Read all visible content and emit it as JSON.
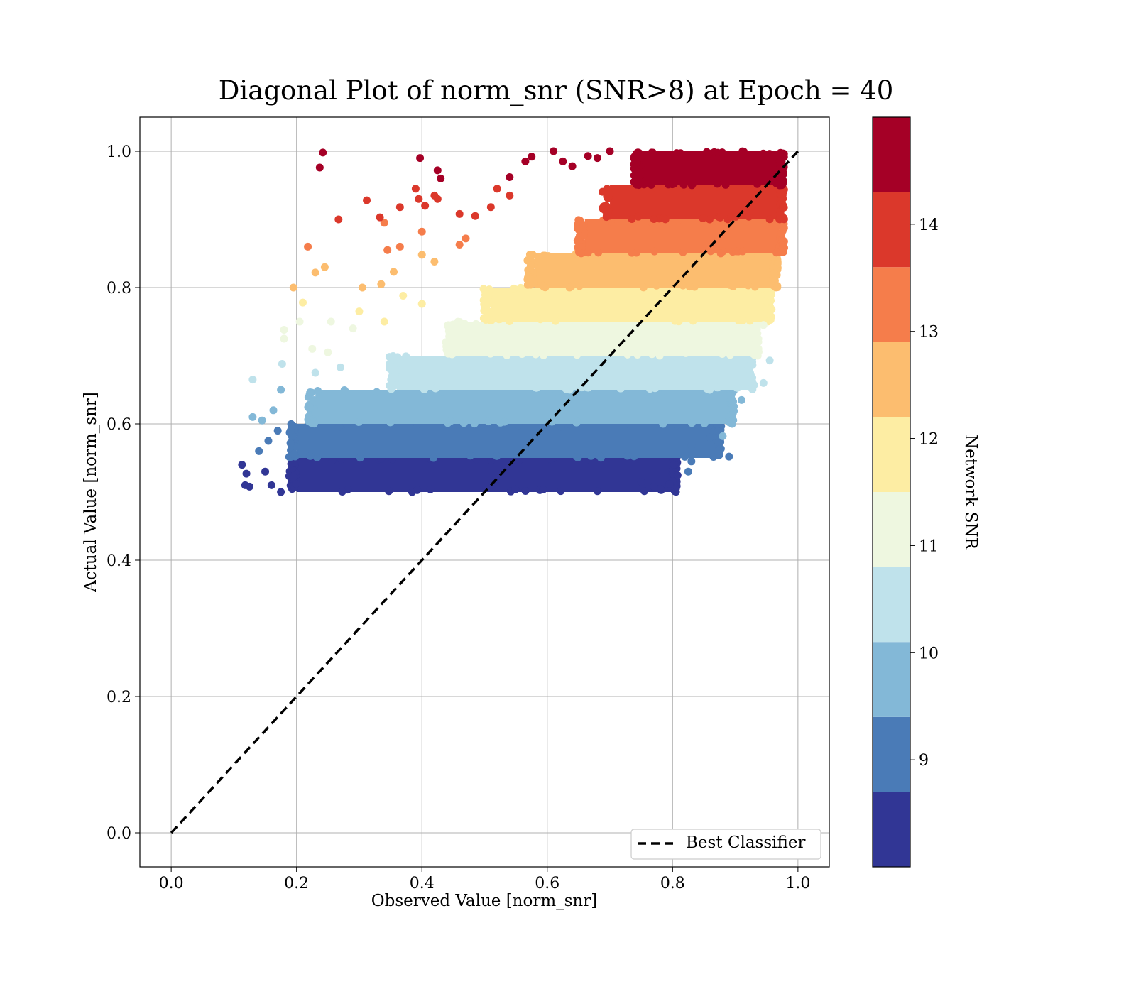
{
  "chart_data": {
    "type": "scatter",
    "title": "Diagonal Plot of norm_snr (SNR>8) at Epoch = 40",
    "xlabel": "Observed Value [norm_snr]",
    "ylabel": "Actual Value [norm_snr]",
    "xlim": [
      -0.05,
      1.05
    ],
    "ylim": [
      -0.05,
      1.05
    ],
    "xticks": [
      "0.0",
      "0.2",
      "0.4",
      "0.6",
      "0.8",
      "1.0"
    ],
    "yticks": [
      "0.0",
      "0.2",
      "0.4",
      "0.6",
      "0.8",
      "1.0"
    ],
    "grid": true,
    "legend": {
      "placement": "lower-right",
      "entries": [
        "Best Classifier"
      ]
    },
    "reference_line": {
      "name": "Best Classifier",
      "style": "dashed",
      "color": "#000000",
      "points": [
        [
          0,
          0
        ],
        [
          1,
          1
        ]
      ]
    },
    "colorbar": {
      "label": "Network SNR",
      "range": [
        8,
        15
      ],
      "tick_values": [
        9,
        10,
        11,
        12,
        13,
        14
      ],
      "tick_labels": [
        "9",
        "10",
        "11",
        "12",
        "13",
        "14"
      ],
      "bands": [
        {
          "min": 8.0,
          "max": 8.7,
          "color": "#313695"
        },
        {
          "min": 8.7,
          "max": 9.4,
          "color": "#4a7bb7"
        },
        {
          "min": 9.4,
          "max": 10.1,
          "color": "#83b8d7"
        },
        {
          "min": 10.1,
          "max": 10.8,
          "color": "#bfe2eb"
        },
        {
          "min": 10.8,
          "max": 11.5,
          "color": "#eef7e0"
        },
        {
          "min": 11.5,
          "max": 12.2,
          "color": "#fdeda3"
        },
        {
          "min": 12.2,
          "max": 12.9,
          "color": "#fcbd6f"
        },
        {
          "min": 12.9,
          "max": 13.6,
          "color": "#f57d4b"
        },
        {
          "min": 13.6,
          "max": 14.3,
          "color": "#db382b"
        },
        {
          "min": 14.3,
          "max": 15.0,
          "color": "#a50026"
        }
      ]
    },
    "series_bands": [
      {
        "y_range": [
          0.5,
          0.55
        ],
        "x_range": [
          0.2,
          0.8
        ],
        "color": "#313695"
      },
      {
        "y_range": [
          0.55,
          0.6
        ],
        "x_range": [
          0.2,
          0.87
        ],
        "color": "#4a7bb7"
      },
      {
        "y_range": [
          0.6,
          0.65
        ],
        "x_range": [
          0.23,
          0.89
        ],
        "color": "#83b8d7"
      },
      {
        "y_range": [
          0.65,
          0.7
        ],
        "x_range": [
          0.36,
          0.92
        ],
        "color": "#bfe2eb"
      },
      {
        "y_range": [
          0.7,
          0.75
        ],
        "x_range": [
          0.45,
          0.93
        ],
        "color": "#eef7e0"
      },
      {
        "y_range": [
          0.75,
          0.8
        ],
        "x_range": [
          0.51,
          0.95
        ],
        "color": "#fdeda3"
      },
      {
        "y_range": [
          0.8,
          0.85
        ],
        "x_range": [
          0.58,
          0.96
        ],
        "color": "#fcbd6f"
      },
      {
        "y_range": [
          0.85,
          0.9
        ],
        "x_range": [
          0.66,
          0.97
        ],
        "color": "#f57d4b"
      },
      {
        "y_range": [
          0.9,
          0.95
        ],
        "x_range": [
          0.7,
          0.97
        ],
        "color": "#db382b"
      },
      {
        "y_range": [
          0.95,
          1.0
        ],
        "x_range": [
          0.75,
          0.97
        ],
        "color": "#a50026"
      }
    ],
    "scatter_points": [
      [
        0.113,
        0.54,
        "#313695"
      ],
      [
        0.118,
        0.51,
        "#313695"
      ],
      [
        0.12,
        0.527,
        "#313695"
      ],
      [
        0.125,
        0.508,
        "#313695"
      ],
      [
        0.15,
        0.53,
        "#313695"
      ],
      [
        0.16,
        0.51,
        "#313695"
      ],
      [
        0.175,
        0.5,
        "#313695"
      ],
      [
        0.78,
        0.505,
        "#313695"
      ],
      [
        0.77,
        0.508,
        "#313695"
      ],
      [
        0.75,
        0.515,
        "#313695"
      ],
      [
        0.795,
        0.512,
        "#313695"
      ],
      [
        0.14,
        0.56,
        "#4a7bb7"
      ],
      [
        0.155,
        0.575,
        "#4a7bb7"
      ],
      [
        0.17,
        0.59,
        "#4a7bb7"
      ],
      [
        0.83,
        0.545,
        "#4a7bb7"
      ],
      [
        0.83,
        0.568,
        "#4a7bb7"
      ],
      [
        0.89,
        0.552,
        "#4a7bb7"
      ],
      [
        0.86,
        0.58,
        "#4a7bb7"
      ],
      [
        0.825,
        0.53,
        "#4a7bb7"
      ],
      [
        0.13,
        0.61,
        "#83b8d7"
      ],
      [
        0.145,
        0.605,
        "#83b8d7"
      ],
      [
        0.175,
        0.65,
        "#83b8d7"
      ],
      [
        0.163,
        0.62,
        "#83b8d7"
      ],
      [
        0.88,
        0.582,
        "#83b8d7"
      ],
      [
        0.895,
        0.6,
        "#83b8d7"
      ],
      [
        0.91,
        0.635,
        "#83b8d7"
      ],
      [
        0.13,
        0.665,
        "#bfe2eb"
      ],
      [
        0.177,
        0.688,
        "#bfe2eb"
      ],
      [
        0.23,
        0.675,
        "#bfe2eb"
      ],
      [
        0.27,
        0.683,
        "#bfe2eb"
      ],
      [
        0.93,
        0.657,
        "#bfe2eb"
      ],
      [
        0.945,
        0.66,
        "#bfe2eb"
      ],
      [
        0.955,
        0.693,
        "#bfe2eb"
      ],
      [
        0.18,
        0.738,
        "#eef7e0"
      ],
      [
        0.18,
        0.725,
        "#eef7e0"
      ],
      [
        0.205,
        0.75,
        "#eef7e0"
      ],
      [
        0.225,
        0.71,
        "#eef7e0"
      ],
      [
        0.25,
        0.705,
        "#eef7e0"
      ],
      [
        0.255,
        0.75,
        "#eef7e0"
      ],
      [
        0.29,
        0.74,
        "#eef7e0"
      ],
      [
        0.945,
        0.745,
        "#eef7e0"
      ],
      [
        0.935,
        0.72,
        "#eef7e0"
      ],
      [
        0.21,
        0.778,
        "#fdeda3"
      ],
      [
        0.3,
        0.765,
        "#fdeda3"
      ],
      [
        0.34,
        0.75,
        "#fdeda3"
      ],
      [
        0.37,
        0.788,
        "#fdeda3"
      ],
      [
        0.4,
        0.776,
        "#fdeda3"
      ],
      [
        0.958,
        0.768,
        "#fdeda3"
      ],
      [
        0.195,
        0.8,
        "#fcbd6f"
      ],
      [
        0.23,
        0.822,
        "#fcbd6f"
      ],
      [
        0.245,
        0.83,
        "#fcbd6f"
      ],
      [
        0.305,
        0.8,
        "#fcbd6f"
      ],
      [
        0.335,
        0.805,
        "#fcbd6f"
      ],
      [
        0.355,
        0.823,
        "#fcbd6f"
      ],
      [
        0.4,
        0.848,
        "#fcbd6f"
      ],
      [
        0.42,
        0.838,
        "#fcbd6f"
      ],
      [
        0.218,
        0.86,
        "#f57d4b"
      ],
      [
        0.34,
        0.895,
        "#f57d4b"
      ],
      [
        0.345,
        0.855,
        "#f57d4b"
      ],
      [
        0.365,
        0.86,
        "#f57d4b"
      ],
      [
        0.4,
        0.882,
        "#f57d4b"
      ],
      [
        0.46,
        0.863,
        "#f57d4b"
      ],
      [
        0.47,
        0.872,
        "#f57d4b"
      ],
      [
        0.267,
        0.9,
        "#db382b"
      ],
      [
        0.312,
        0.928,
        "#db382b"
      ],
      [
        0.333,
        0.903,
        "#db382b"
      ],
      [
        0.365,
        0.918,
        "#db382b"
      ],
      [
        0.39,
        0.945,
        "#db382b"
      ],
      [
        0.395,
        0.93,
        "#db382b"
      ],
      [
        0.405,
        0.92,
        "#db382b"
      ],
      [
        0.42,
        0.935,
        "#db382b"
      ],
      [
        0.425,
        0.93,
        "#db382b"
      ],
      [
        0.46,
        0.908,
        "#db382b"
      ],
      [
        0.485,
        0.905,
        "#db382b"
      ],
      [
        0.51,
        0.918,
        "#db382b"
      ],
      [
        0.52,
        0.945,
        "#db382b"
      ],
      [
        0.54,
        0.935,
        "#db382b"
      ],
      [
        0.242,
        0.998,
        "#a50026"
      ],
      [
        0.237,
        0.976,
        "#a50026"
      ],
      [
        0.397,
        0.99,
        "#a50026"
      ],
      [
        0.425,
        0.972,
        "#a50026"
      ],
      [
        0.43,
        0.96,
        "#a50026"
      ],
      [
        0.54,
        0.962,
        "#a50026"
      ],
      [
        0.565,
        0.985,
        "#a50026"
      ],
      [
        0.575,
        0.992,
        "#a50026"
      ],
      [
        0.61,
        1.0,
        "#a50026"
      ],
      [
        0.625,
        0.985,
        "#a50026"
      ],
      [
        0.64,
        0.978,
        "#a50026"
      ],
      [
        0.665,
        0.993,
        "#a50026"
      ],
      [
        0.68,
        0.99,
        "#a50026"
      ],
      [
        0.7,
        1.0,
        "#a50026"
      ]
    ]
  }
}
